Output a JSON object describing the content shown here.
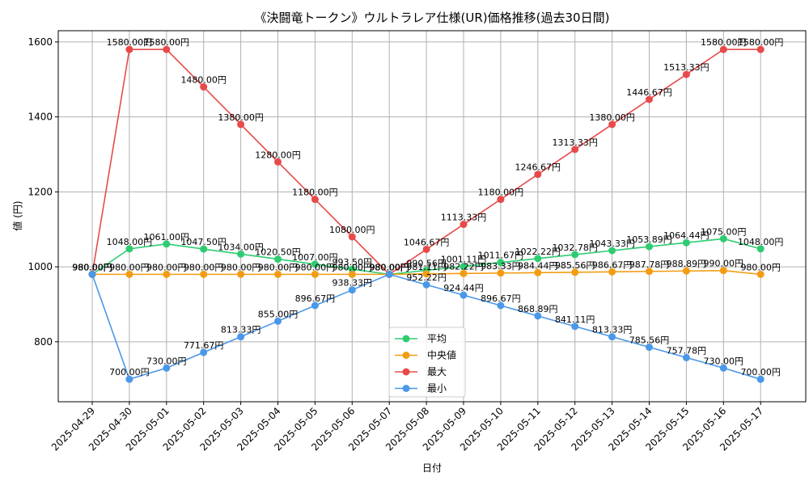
{
  "chart_data": {
    "type": "line",
    "title": "《決闘竜トークン》ウルトラレア仕様(UR)価格推移(過去30日間)",
    "xlabel": "日付",
    "ylabel": "値 (円)",
    "ylim": [
      640,
      1630
    ],
    "yticks": [
      800,
      1000,
      1200,
      1400,
      1600
    ],
    "grid": true,
    "legend_position": "bottom-center",
    "x": [
      "2025-04-29",
      "2025-04-30",
      "2025-05-01",
      "2025-05-02",
      "2025-05-03",
      "2025-05-04",
      "2025-05-05",
      "2025-05-06",
      "2025-05-07",
      "2025-05-08",
      "2025-05-09",
      "2025-05-10",
      "2025-05-11",
      "2025-05-12",
      "2025-05-13",
      "2025-05-14",
      "2025-05-15",
      "2025-05-16",
      "2025-05-17"
    ],
    "series": [
      {
        "name": "平均",
        "color": "#2ecc71",
        "values": [
          980.0,
          1048.0,
          1061.0,
          1047.5,
          1034.0,
          1020.5,
          1007.0,
          993.5,
          980.0,
          990.56,
          1001.11,
          1011.67,
          1022.22,
          1032.78,
          1043.33,
          1053.89,
          1064.44,
          1075.0,
          1048.0
        ],
        "labels": [
          "980.00円",
          "1048.00円",
          "1061.00円",
          "1047.50円",
          "1034.00円",
          "1020.50円",
          "1007.00円",
          "993.50円",
          "980.00円",
          "990.56円",
          "1001.11円",
          "1011.67円",
          "1022.22円",
          "1032.78円",
          "1043.33円",
          "1053.89円",
          "1064.44円",
          "1075.00円",
          "1048.00円"
        ]
      },
      {
        "name": "中央値",
        "color": "#f39c12",
        "values": [
          980.0,
          980.0,
          980.0,
          980.0,
          980.0,
          980.0,
          980.0,
          980.0,
          980.0,
          981.11,
          982.22,
          983.33,
          984.44,
          985.56,
          986.67,
          987.78,
          988.89,
          990.0,
          980.0
        ],
        "labels": [
          "980.00円",
          "980.00円",
          "980.00円",
          "980.00円",
          "980.00円",
          "980.00円",
          "980.00円",
          "980.00円",
          "980.00円",
          "981.11円",
          "982.22円",
          "983.33円",
          "984.44円",
          "985.56円",
          "986.67円",
          "987.78円",
          "988.89円",
          "990.00円",
          "980.00円"
        ]
      },
      {
        "name": "最大",
        "color": "#e84a4a",
        "values": [
          980.0,
          1580.0,
          1580.0,
          1480.0,
          1380.0,
          1280.0,
          1180.0,
          1080.0,
          980.0,
          1046.67,
          1113.33,
          1180.0,
          1246.67,
          1313.33,
          1380.0,
          1446.67,
          1513.33,
          1580.0,
          1580.0
        ],
        "labels": [
          "980.00円",
          "1580.00円",
          "1580.00円",
          "1480.00円",
          "1380.00円",
          "1280.00円",
          "1180.00円",
          "1080.00円",
          "980.00円",
          "1046.67円",
          "1113.33円",
          "1180.00円",
          "1246.67円",
          "1313.33円",
          "1380.00円",
          "1446.67円",
          "1513.33円",
          "1580.00円",
          "1580.00円"
        ]
      },
      {
        "name": "最小",
        "color": "#4a98e8",
        "values": [
          980.0,
          700.0,
          730.0,
          771.67,
          813.33,
          855.0,
          896.67,
          938.33,
          980.0,
          952.22,
          924.44,
          896.67,
          868.89,
          841.11,
          813.33,
          785.56,
          757.78,
          730.0,
          700.0
        ],
        "labels": [
          "980.00円",
          "700.00円",
          "730.00円",
          "771.67円",
          "813.33円",
          "855.00円",
          "896.67円",
          "938.33円",
          "980.00円",
          "952.22円",
          "924.44円",
          "896.67円",
          "868.89円",
          "841.11円",
          "813.33円",
          "785.56円",
          "757.78円",
          "730.00円",
          "700.00円"
        ]
      }
    ]
  }
}
